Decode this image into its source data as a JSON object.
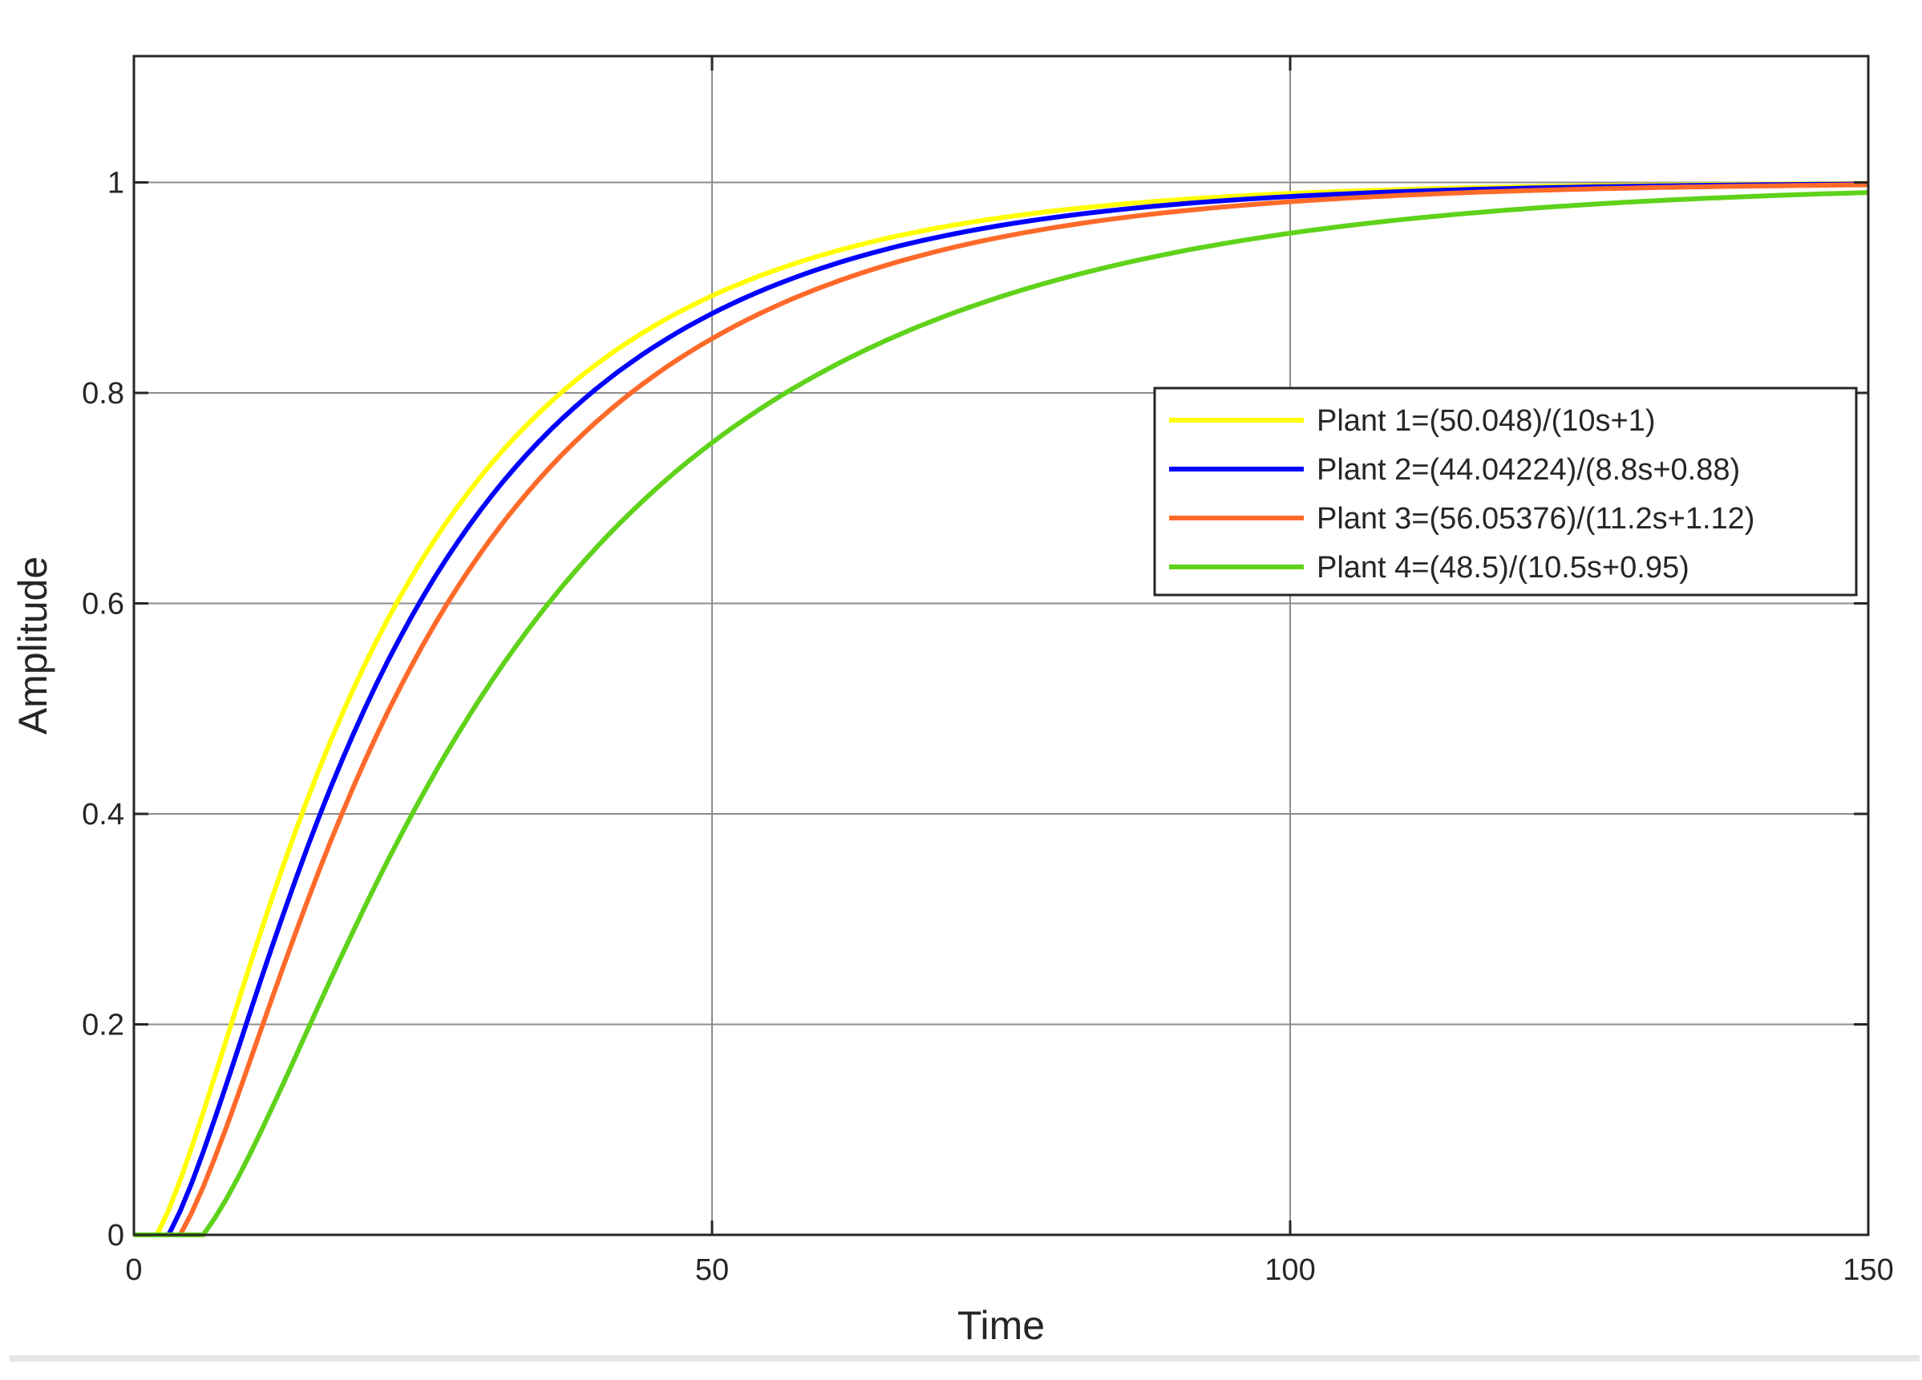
{
  "colors": {
    "background": "#ffffff",
    "axes": "#262626",
    "grid": "#8c8c8c",
    "frame_bottom": "#e6e6e6"
  },
  "chart_data": {
    "type": "line",
    "title": "",
    "xlabel": "Time",
    "ylabel": "Amplitude",
    "xlim": [
      0,
      150
    ],
    "ylim": [
      0,
      1.12
    ],
    "xticks": [
      0,
      50,
      100,
      150
    ],
    "xtick_labels": [
      "0",
      "50",
      "100",
      "150"
    ],
    "yticks": [
      0,
      0.2,
      0.4,
      0.6,
      0.8,
      1
    ],
    "ytick_labels": [
      "0",
      "0.2",
      "0.4",
      "0.6",
      "0.8",
      "1"
    ],
    "grid": true,
    "legend_position": "right-middle",
    "series": [
      {
        "name": "Plant 1=(50.048)/(10s+1)",
        "color": "#ffff00",
        "delay": 2,
        "tau": 21.5,
        "n_pts": 151,
        "x": [
          0,
          2,
          5,
          8,
          10,
          15,
          20,
          25,
          30,
          40,
          50,
          60,
          75,
          100,
          125,
          150
        ]
      },
      {
        "name": "Plant 2=(44.04224)/(8.8s+0.88)",
        "color": "#0000ff",
        "delay": 3,
        "tau": 22.5,
        "n_pts": 151,
        "x": [
          0,
          3,
          5,
          8,
          10,
          15,
          20,
          25,
          30,
          40,
          50,
          60,
          75,
          100,
          125,
          150
        ]
      },
      {
        "name": "Plant 3=(56.05376)/(11.2s+1.12)",
        "color": "#ff6a2a",
        "delay": 4,
        "tau": 24,
        "n_pts": 151,
        "x": [
          0,
          4,
          6,
          8,
          10,
          15,
          20,
          25,
          30,
          40,
          50,
          60,
          75,
          100,
          125,
          150
        ]
      },
      {
        "name": "Plant 4=(48.5)/(10.5s+0.95)",
        "color": "#5fd21a",
        "delay": 6,
        "tau": 31,
        "n_pts": 151,
        "x": [
          0,
          6,
          8,
          10,
          15,
          20,
          25,
          30,
          40,
          50,
          60,
          75,
          100,
          125,
          150
        ]
      }
    ]
  }
}
